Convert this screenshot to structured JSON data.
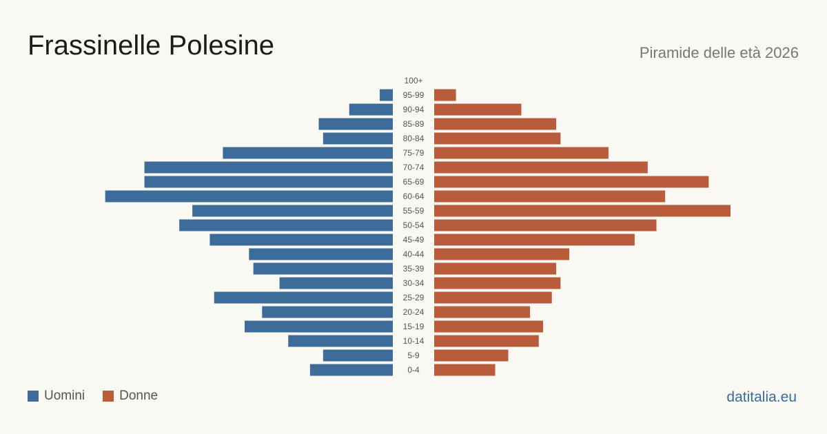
{
  "header": {
    "title": "Frassinelle Polesine",
    "subtitle": "Piramide delle età 2026"
  },
  "legend": {
    "men_label": "Uomini",
    "women_label": "Donne"
  },
  "footer": {
    "source": "datitalia.eu"
  },
  "colors": {
    "men": "#3d6b9a",
    "women": "#b95c3c",
    "background": "#faf8f3"
  },
  "chart_data": {
    "type": "bar",
    "orientation": "horizontal-pyramid",
    "categories": [
      "100+",
      "95-99",
      "90-94",
      "85-89",
      "80-84",
      "75-79",
      "70-74",
      "65-69",
      "60-64",
      "55-59",
      "50-54",
      "45-49",
      "40-44",
      "35-39",
      "30-34",
      "25-29",
      "20-24",
      "15-19",
      "10-14",
      "5-9",
      "0-4"
    ],
    "series": [
      {
        "name": "Uomini",
        "values": [
          0,
          3,
          10,
          17,
          16,
          39,
          57,
          57,
          66,
          46,
          49,
          42,
          33,
          32,
          26,
          41,
          30,
          34,
          24,
          16,
          19
        ]
      },
      {
        "name": "Donne",
        "values": [
          0,
          5,
          20,
          28,
          29,
          40,
          49,
          63,
          53,
          68,
          51,
          46,
          31,
          28,
          29,
          27,
          22,
          25,
          24,
          17,
          14
        ]
      }
    ],
    "axes_shown": false,
    "grid": false,
    "legend_position": "bottom-left"
  }
}
